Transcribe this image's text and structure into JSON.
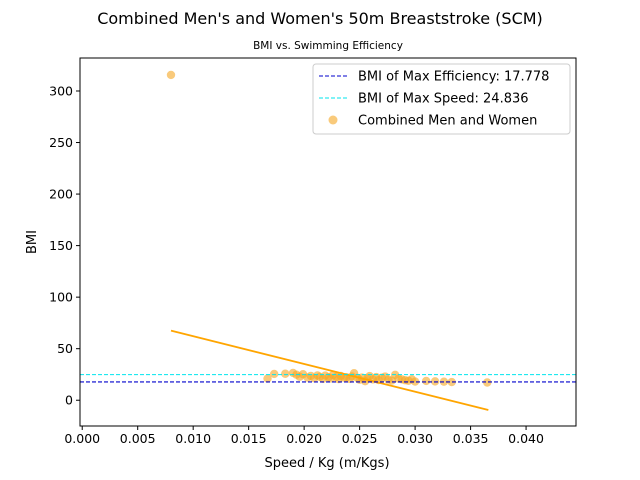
{
  "chart_data": {
    "type": "scatter",
    "title": "Combined Men's and Women's 50m Breaststroke (SCM)",
    "subtitle": "BMI vs. Swimming Efficiency",
    "xlabel": "Speed / Kg (m/Kgs)",
    "ylabel": "BMI",
    "xlim": [
      -0.0002,
      0.0445
    ],
    "ylim": [
      -25,
      332
    ],
    "x_ticks": [
      0.0,
      0.005,
      0.01,
      0.015,
      0.02,
      0.025,
      0.03,
      0.035,
      0.04
    ],
    "x_tick_labels": [
      "0.000",
      "0.005",
      "0.010",
      "0.015",
      "0.020",
      "0.025",
      "0.030",
      "0.035",
      "0.040"
    ],
    "y_ticks": [
      0,
      50,
      100,
      150,
      200,
      250,
      300
    ],
    "y_tick_labels": [
      "0",
      "50",
      "100",
      "150",
      "200",
      "250",
      "300"
    ],
    "grid": false,
    "legend_position": "top-right",
    "series": [
      {
        "name": "Combined Men and Women",
        "kind": "scatter",
        "color": "#f5a623",
        "points": [
          [
            0.008,
            315.6
          ],
          [
            0.0167,
            21.0
          ],
          [
            0.0173,
            25.5
          ],
          [
            0.0183,
            25.7
          ],
          [
            0.019,
            26.5
          ],
          [
            0.0193,
            24.8
          ],
          [
            0.0196,
            22.8
          ],
          [
            0.0199,
            25.2
          ],
          [
            0.0203,
            22.0
          ],
          [
            0.0206,
            23.6
          ],
          [
            0.0209,
            21.4
          ],
          [
            0.0212,
            24.1
          ],
          [
            0.0214,
            22.7
          ],
          [
            0.0217,
            20.8
          ],
          [
            0.0219,
            23.9
          ],
          [
            0.0222,
            22.3
          ],
          [
            0.0224,
            21.1
          ],
          [
            0.0226,
            24.4
          ],
          [
            0.0229,
            22.6
          ],
          [
            0.0231,
            20.5
          ],
          [
            0.0233,
            23.5
          ],
          [
            0.0236,
            21.9
          ],
          [
            0.0238,
            22.4
          ],
          [
            0.0241,
            20.7
          ],
          [
            0.0243,
            23.1
          ],
          [
            0.0245,
            26.2
          ],
          [
            0.0248,
            21.6
          ],
          [
            0.025,
            19.9
          ],
          [
            0.0252,
            22.0
          ],
          [
            0.0255,
            18.5
          ],
          [
            0.0257,
            21.3
          ],
          [
            0.0259,
            23.4
          ],
          [
            0.0262,
            20.2
          ],
          [
            0.0265,
            22.5
          ],
          [
            0.0267,
            19.6
          ],
          [
            0.027,
            21.8
          ],
          [
            0.0273,
            23.0
          ],
          [
            0.0276,
            20.0
          ],
          [
            0.0279,
            19.1
          ],
          [
            0.0282,
            24.6
          ],
          [
            0.0285,
            21.0
          ],
          [
            0.0288,
            20.3
          ],
          [
            0.0291,
            19.4
          ],
          [
            0.0294,
            18.9
          ],
          [
            0.0297,
            20.4
          ],
          [
            0.03,
            18.1
          ],
          [
            0.031,
            18.7
          ],
          [
            0.0318,
            18.3
          ],
          [
            0.0326,
            18.0
          ],
          [
            0.0333,
            17.6
          ],
          [
            0.0365,
            17.2
          ]
        ]
      },
      {
        "name": "",
        "kind": "trendline",
        "color": "#ffa500",
        "segment": [
          [
            0.008,
            67.5
          ],
          [
            0.0366,
            -9.5
          ]
        ]
      },
      {
        "name": "BMI of Max Efficiency: 17.778",
        "kind": "hline",
        "value": 17.778,
        "color": "#0000cc"
      },
      {
        "name": "BMI of Max Speed: 24.836",
        "kind": "hline",
        "value": 24.836,
        "color": "#00e5ee"
      }
    ],
    "legend_entries": [
      {
        "label": "BMI of Max Efficiency: 17.778",
        "color": "#0000cc",
        "marker": "dashed-line"
      },
      {
        "label": "BMI of Max Speed: 24.836",
        "color": "#00e5ee",
        "marker": "dashed-line"
      },
      {
        "label": "Combined Men and Women",
        "color": "#f5a623",
        "marker": "dot"
      }
    ]
  }
}
